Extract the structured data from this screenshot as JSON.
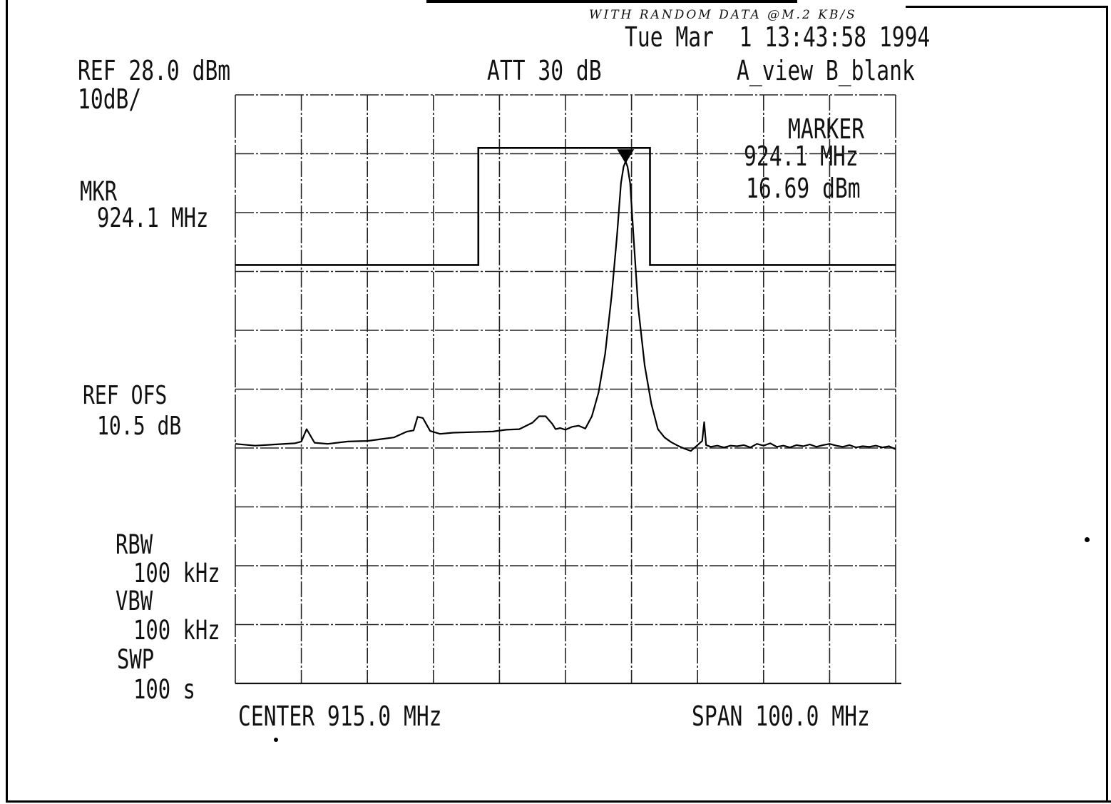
{
  "header": {
    "annotation": "WITH RANDOM DATA @M.2 KB/S",
    "timestamp": "Tue Mar  1 13:43:58 1994",
    "ref_level": "REF 28.0 dBm",
    "scale": "10dB/",
    "attenuation": "ATT 30 dB",
    "trace_mode": "A_view B_blank"
  },
  "marker_box": {
    "title": "MARKER",
    "freq": "924.1 MHz",
    "level": "16.69 dBm"
  },
  "left_panel": {
    "mkr_label": "MKR",
    "mkr_value": "924.1 MHz",
    "ref_ofs_label": "REF OFS",
    "ref_ofs_value": "10.5 dB",
    "rbw_label": "RBW",
    "rbw_value": "100 kHz",
    "vbw_label": "VBW",
    "vbw_value": "100 kHz",
    "swp_label": "SWP",
    "swp_value": "100 s"
  },
  "footer": {
    "center": "CENTER 915.0 MHz",
    "span": "SPAN 100.0 MHz"
  },
  "chart_data": {
    "type": "line",
    "xlim": [
      865.0,
      965.0
    ],
    "ylim": [
      -72.0,
      28.0
    ],
    "x_divisions": 10,
    "y_divisions": 10,
    "grid": true,
    "marker": {
      "x": 924.1,
      "y": 16.69
    },
    "series": [
      {
        "role": "measured-trace",
        "x": [
          865.0,
          868.0,
          871.0,
          874.0,
          875.0,
          875.8,
          877.0,
          879.0,
          882.0,
          885.0,
          887.0,
          889.0,
          891.0,
          892.0,
          892.6,
          893.4,
          894.5,
          896.0,
          898.0,
          901.0,
          904.0,
          906.0,
          908.0,
          910.0,
          911.0,
          912.0,
          913.0,
          913.5,
          914.2,
          915.0,
          916.0,
          917.0,
          918.0,
          919.0,
          920.0,
          921.0,
          922.0,
          922.8,
          923.4,
          923.8,
          924.1,
          924.4,
          924.8,
          925.3,
          926.0,
          927.0,
          928.0,
          929.0,
          930.0,
          931.0,
          932.0,
          933.0,
          934.0,
          935.0,
          935.7,
          936.0,
          936.3,
          937.0,
          938.0,
          939.0,
          940.0,
          941.0,
          942.0,
          943.0,
          944.0,
          945.0,
          946.0,
          947.0,
          948.0,
          949.0,
          950.0,
          951.0,
          952.0,
          953.0,
          954.0,
          955.0,
          956.0,
          957.0,
          958.0,
          959.0,
          960.0,
          961.0,
          962.0,
          963.0,
          964.0,
          965.0
        ],
        "y": [
          -31.3,
          -31.6,
          -31.4,
          -31.2,
          -30.9,
          -28.8,
          -31.1,
          -31.3,
          -30.9,
          -30.8,
          -30.5,
          -30.2,
          -29.2,
          -29.0,
          -26.7,
          -26.9,
          -29.1,
          -29.6,
          -29.4,
          -29.3,
          -29.2,
          -28.9,
          -28.8,
          -27.7,
          -26.6,
          -26.6,
          -27.9,
          -28.8,
          -28.6,
          -28.9,
          -28.4,
          -28.2,
          -28.7,
          -26.6,
          -22.6,
          -16.0,
          -6.0,
          4.0,
          13.0,
          15.8,
          16.69,
          15.8,
          13.0,
          4.0,
          -8.0,
          -18.0,
          -24.5,
          -28.8,
          -30.2,
          -31.0,
          -31.6,
          -32.1,
          -32.5,
          -31.5,
          -30.8,
          -27.6,
          -31.5,
          -31.8,
          -31.6,
          -31.9,
          -31.6,
          -31.7,
          -31.5,
          -31.9,
          -31.3,
          -31.6,
          -31.2,
          -31.8,
          -31.6,
          -31.9,
          -31.5,
          -31.7,
          -31.4,
          -31.8,
          -31.5,
          -31.3,
          -31.6,
          -31.8,
          -31.5,
          -31.9,
          -31.7,
          -31.8,
          -31.6,
          -31.9,
          -31.7,
          -32.2
        ]
      },
      {
        "role": "limit-line",
        "x": [
          865.0,
          901.8,
          901.8,
          927.8,
          927.8,
          965.0
        ],
        "y": [
          -0.9,
          -0.9,
          19.0,
          19.0,
          -0.9,
          -0.9
        ]
      }
    ]
  }
}
